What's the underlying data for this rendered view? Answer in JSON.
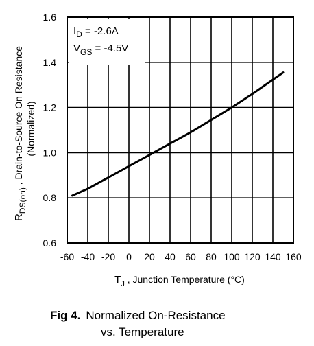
{
  "chart_data": {
    "type": "line",
    "x": [
      -55,
      -40,
      -20,
      0,
      20,
      40,
      60,
      80,
      100,
      120,
      150
    ],
    "series": [
      {
        "values": [
          0.81,
          0.84,
          0.89,
          0.94,
          0.99,
          1.04,
          1.09,
          1.145,
          1.2,
          1.26,
          1.355
        ]
      }
    ],
    "xlim": [
      -60,
      160
    ],
    "ylim": [
      0.6,
      1.6
    ],
    "xticks": [
      -60,
      -40,
      -20,
      0,
      20,
      40,
      60,
      80,
      100,
      120,
      140,
      160
    ],
    "yticks": [
      0.6,
      0.8,
      1.0,
      1.2,
      1.4,
      1.6
    ],
    "xtick_labels": [
      "-60",
      "-40",
      "-20",
      "0",
      "20",
      "40",
      "60",
      "80",
      "100",
      "120",
      "140",
      "160"
    ],
    "ytick_labels": [
      "0.6",
      "0.8",
      "1.0",
      "1.2",
      "1.4",
      "1.6"
    ],
    "grid": true,
    "xlabel": {
      "prefix": "T",
      "sub": "J",
      "rest": " , Junction Temperature (°C)"
    },
    "ylabel": {
      "prefix": "R",
      "sub": "DS(on)",
      "rest": " , Drain-to-Source On Resistance",
      "line2": "(Normalized)"
    },
    "annotations": [
      {
        "prefix": "I",
        "sub": "D",
        "rest": " = -2.6A"
      },
      {
        "prefix": "V",
        "sub": "GS",
        "rest": " = -4.5V"
      }
    ],
    "caption": {
      "label": "Fig 4.",
      "line1": "Normalized On-Resistance",
      "line2": "vs. Temperature"
    }
  }
}
